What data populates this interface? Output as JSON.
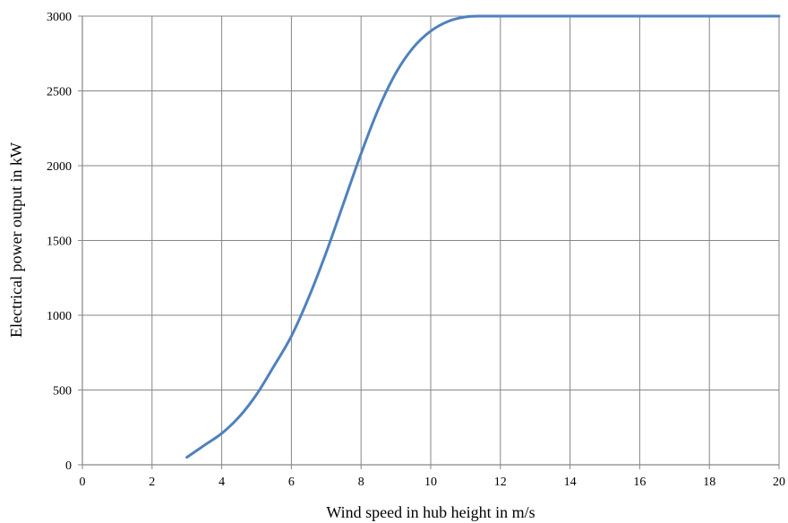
{
  "chart_data": {
    "type": "line",
    "title": "",
    "xlabel": "Wind speed in hub height  in m/s",
    "ylabel": "Electrical power output in kW",
    "xlim": [
      0,
      20
    ],
    "ylim": [
      0,
      3000
    ],
    "xticks": [
      0,
      2,
      4,
      6,
      8,
      10,
      12,
      14,
      16,
      18,
      20
    ],
    "yticks": [
      0,
      500,
      1000,
      1500,
      2000,
      2500,
      3000
    ],
    "grid": true,
    "legend": "none",
    "series": [
      {
        "color": "#4f81bd",
        "x": [
          3,
          3.5,
          4,
          4.5,
          5,
          5.5,
          6,
          6.5,
          7,
          7.5,
          8,
          8.5,
          9,
          9.5,
          10,
          10.5,
          11,
          11.5,
          12,
          13,
          14,
          15,
          16,
          17,
          18,
          19,
          20
        ],
        "y": [
          50,
          130,
          210,
          320,
          470,
          660,
          860,
          1120,
          1420,
          1750,
          2080,
          2380,
          2620,
          2790,
          2900,
          2965,
          2995,
          3000,
          3000,
          3000,
          3000,
          3000,
          3000,
          3000,
          3000,
          3000,
          3000
        ]
      }
    ]
  }
}
